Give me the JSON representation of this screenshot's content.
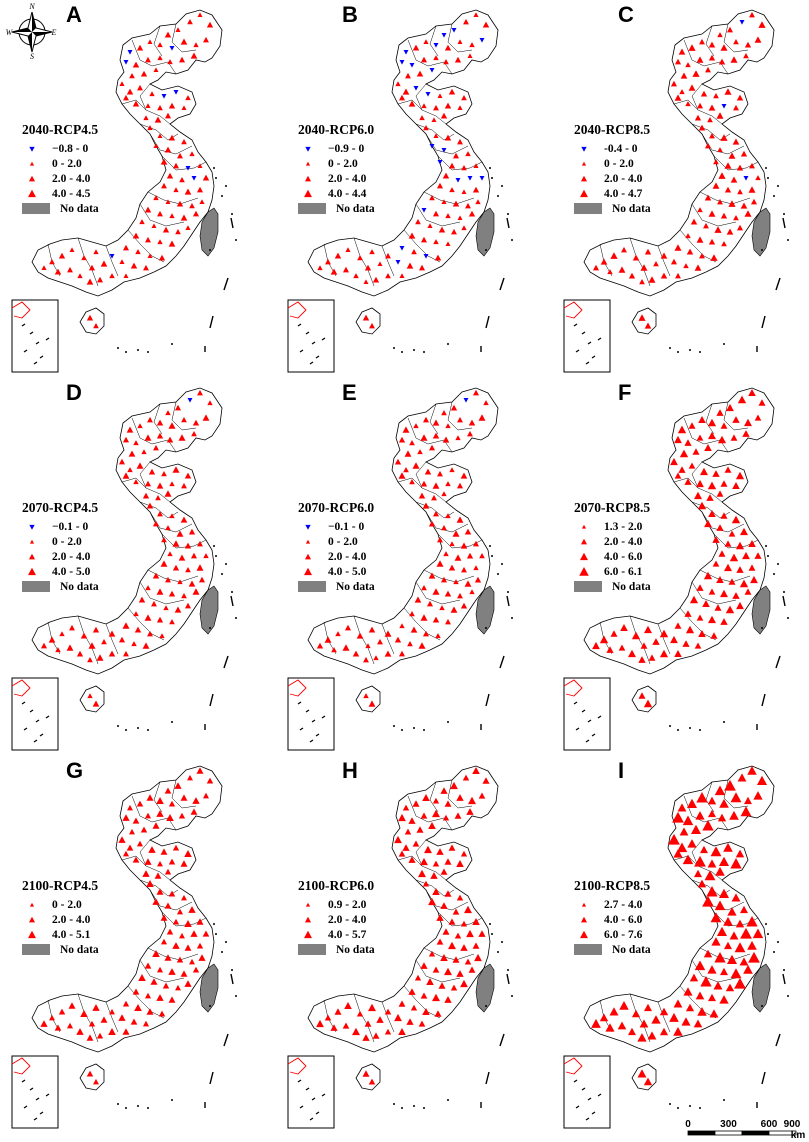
{
  "panels": [
    {
      "letter": "A",
      "title": "2040-RCP4.5",
      "legend": [
        {
          "label": "−0.8 - 0",
          "sym": "down"
        },
        {
          "label": "0 - 2.0",
          "sym": "up-s"
        },
        {
          "label": "2.0 - 4.0",
          "sym": "up-m"
        },
        {
          "label": "4.0 - 4.5",
          "sym": "up-l"
        },
        {
          "label": "No data",
          "sym": "nodata"
        }
      ]
    },
    {
      "letter": "B",
      "title": "2040-RCP6.0",
      "legend": [
        {
          "label": "−0.9 - 0",
          "sym": "down"
        },
        {
          "label": "0 - 2.0",
          "sym": "up-s"
        },
        {
          "label": "2.0 - 4.0",
          "sym": "up-m"
        },
        {
          "label": "4.0 - 4.4",
          "sym": "up-l"
        },
        {
          "label": "No data",
          "sym": "nodata"
        }
      ]
    },
    {
      "letter": "C",
      "title": "2040-RCP8.5",
      "legend": [
        {
          "label": "-0.4 - 0",
          "sym": "down"
        },
        {
          "label": "0 - 2.0",
          "sym": "up-s"
        },
        {
          "label": "2.0 - 4.0",
          "sym": "up-m"
        },
        {
          "label": "4.0 - 4.7",
          "sym": "up-l"
        },
        {
          "label": "No data",
          "sym": "nodata"
        }
      ]
    },
    {
      "letter": "D",
      "title": "2070-RCP4.5",
      "legend": [
        {
          "label": "−0.1 - 0",
          "sym": "down"
        },
        {
          "label": "0 - 2.0",
          "sym": "up-s"
        },
        {
          "label": "2.0 - 4.0",
          "sym": "up-m"
        },
        {
          "label": "4.0 - 5.0",
          "sym": "up-l"
        },
        {
          "label": "No data",
          "sym": "nodata"
        }
      ]
    },
    {
      "letter": "E",
      "title": "2070-RCP6.0",
      "legend": [
        {
          "label": "−0.1 - 0",
          "sym": "down"
        },
        {
          "label": "0 - 2.0",
          "sym": "up-s"
        },
        {
          "label": "2.0 - 4.0",
          "sym": "up-m"
        },
        {
          "label": "4.0 - 5.0",
          "sym": "up-l"
        },
        {
          "label": "No data",
          "sym": "nodata"
        }
      ]
    },
    {
      "letter": "F",
      "title": "2070-RCP8.5",
      "legend": [
        {
          "label": "1.3 - 2.0",
          "sym": "up-s"
        },
        {
          "label": "2.0 - 4.0",
          "sym": "up-m"
        },
        {
          "label": "4.0 - 6.0",
          "sym": "up-l"
        },
        {
          "label": "6.0 - 6.1",
          "sym": "up-xl"
        },
        {
          "label": "No data",
          "sym": "nodata"
        }
      ]
    },
    {
      "letter": "G",
      "title": "2100-RCP4.5",
      "legend": [
        {
          "label": "0 - 2.0",
          "sym": "up-s"
        },
        {
          "label": "2.0 - 4.0",
          "sym": "up-m"
        },
        {
          "label": "4.0 - 5.1",
          "sym": "up-l"
        },
        {
          "label": "No data",
          "sym": "nodata"
        }
      ]
    },
    {
      "letter": "H",
      "title": "2100-RCP6.0",
      "legend": [
        {
          "label": "0.9 - 2.0",
          "sym": "up-s"
        },
        {
          "label": "2.0 - 4.0",
          "sym": "up-m"
        },
        {
          "label": "4.0 - 5.7",
          "sym": "up-l"
        },
        {
          "label": "No data",
          "sym": "nodata"
        }
      ]
    },
    {
      "letter": "I",
      "title": "2100-RCP8.5",
      "legend": [
        {
          "label": "2.7 - 4.0",
          "sym": "up-s"
        },
        {
          "label": "4.0 - 6.0",
          "sym": "up-m"
        },
        {
          "label": "6.0 - 7.6",
          "sym": "up-l"
        },
        {
          "label": "No data",
          "sym": "nodata"
        }
      ]
    }
  ],
  "compass": {
    "n": "N",
    "s": "S",
    "e": "E",
    "w": "W"
  },
  "scalebar": {
    "ticks": [
      "0",
      "300",
      "600",
      "900"
    ],
    "unit": "km"
  },
  "colors": {
    "increase": "#ff0000",
    "decrease": "#0000ff",
    "nodata": "#808080",
    "outline": "#000000"
  }
}
